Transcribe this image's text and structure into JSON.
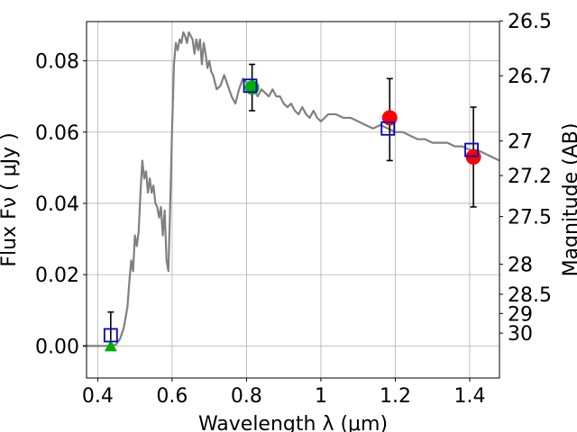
{
  "chart_data": {
    "type": "scatter",
    "xlabel": "Wavelength  λ (μm)",
    "ylabel": "Flux  Fν  ( μJy )",
    "y2label": "Magnitude (AB)",
    "xlim": [
      0.37,
      1.48
    ],
    "ylim": [
      -0.009,
      0.091
    ],
    "grid": true,
    "x_ticks": [
      0.4,
      0.6,
      0.8,
      1.0,
      1.2,
      1.4
    ],
    "x_tick_labels": [
      "0.4",
      "0.6",
      "0.8",
      "1",
      "1.2",
      "1.4"
    ],
    "y_ticks": [
      0.0,
      0.02,
      0.04,
      0.06,
      0.08
    ],
    "y_tick_labels": [
      "0.00",
      "0.02",
      "0.04",
      "0.06",
      "0.08"
    ],
    "y2_ticks": [
      {
        "label": "26.5",
        "flux": 0.0912
      },
      {
        "label": "26.7",
        "flux": 0.0758
      },
      {
        "label": "27",
        "flux": 0.0575
      },
      {
        "label": "27.2",
        "flux": 0.0478
      },
      {
        "label": "27.5",
        "flux": 0.0363
      },
      {
        "label": "28",
        "flux": 0.0229
      },
      {
        "label": "28.5",
        "flux": 0.0145
      },
      {
        "label": "29",
        "flux": 0.0091
      },
      {
        "label": "30",
        "flux": 0.0036
      }
    ],
    "colors": {
      "model": "#808080",
      "square": "#0000cc",
      "circle": "#ff0000",
      "green": "#00b000",
      "errorbar": "#000000"
    },
    "series": [
      {
        "name": "model_sed",
        "style": "line",
        "x": [
          0.36,
          0.44,
          0.45,
          0.46,
          0.47,
          0.48,
          0.485,
          0.49,
          0.495,
          0.5,
          0.505,
          0.51,
          0.515,
          0.52,
          0.525,
          0.53,
          0.535,
          0.54,
          0.545,
          0.55,
          0.555,
          0.56,
          0.565,
          0.57,
          0.575,
          0.58,
          0.585,
          0.59,
          0.595,
          0.6,
          0.605,
          0.61,
          0.615,
          0.62,
          0.625,
          0.63,
          0.635,
          0.64,
          0.645,
          0.65,
          0.655,
          0.66,
          0.665,
          0.67,
          0.675,
          0.68,
          0.685,
          0.69,
          0.695,
          0.7,
          0.705,
          0.71,
          0.715,
          0.72,
          0.73,
          0.74,
          0.75,
          0.76,
          0.77,
          0.78,
          0.79,
          0.8,
          0.81,
          0.82,
          0.83,
          0.84,
          0.85,
          0.86,
          0.87,
          0.88,
          0.89,
          0.9,
          0.91,
          0.92,
          0.93,
          0.94,
          0.95,
          0.96,
          0.97,
          0.98,
          0.99,
          1.0,
          1.02,
          1.04,
          1.06,
          1.08,
          1.1,
          1.12,
          1.14,
          1.16,
          1.18,
          1.2,
          1.22,
          1.24,
          1.26,
          1.28,
          1.3,
          1.32,
          1.34,
          1.36,
          1.38,
          1.4,
          1.42,
          1.44,
          1.46,
          1.48
        ],
        "y": [
          0.0,
          0.0,
          0.0005,
          0.002,
          0.005,
          0.011,
          0.018,
          0.024,
          0.021,
          0.031,
          0.028,
          0.032,
          0.043,
          0.052,
          0.047,
          0.049,
          0.043,
          0.047,
          0.043,
          0.045,
          0.04,
          0.039,
          0.036,
          0.039,
          0.031,
          0.038,
          0.024,
          0.021,
          0.04,
          0.061,
          0.079,
          0.085,
          0.083,
          0.086,
          0.085,
          0.088,
          0.087,
          0.085,
          0.088,
          0.087,
          0.086,
          0.082,
          0.086,
          0.083,
          0.086,
          0.079,
          0.085,
          0.082,
          0.078,
          0.08,
          0.077,
          0.076,
          0.074,
          0.072,
          0.073,
          0.076,
          0.073,
          0.07,
          0.068,
          0.072,
          0.075,
          0.074,
          0.073,
          0.072,
          0.07,
          0.072,
          0.071,
          0.07,
          0.072,
          0.07,
          0.07,
          0.068,
          0.067,
          0.068,
          0.066,
          0.065,
          0.067,
          0.065,
          0.064,
          0.066,
          0.064,
          0.063,
          0.065,
          0.065,
          0.064,
          0.064,
          0.063,
          0.062,
          0.061,
          0.062,
          0.061,
          0.06,
          0.06,
          0.059,
          0.058,
          0.058,
          0.057,
          0.057,
          0.057,
          0.056,
          0.056,
          0.055,
          0.055,
          0.054,
          0.053,
          0.052
        ]
      },
      {
        "name": "squares",
        "style": "open-square",
        "x": [
          0.435,
          0.81,
          1.18,
          1.405
        ],
        "y": [
          0.003,
          0.073,
          0.061,
          0.055
        ]
      },
      {
        "name": "circles",
        "style": "filled-circle",
        "x": [
          1.185,
          1.41
        ],
        "y": [
          0.064,
          0.053
        ],
        "err_low": [
          0.052,
          0.039
        ],
        "err_high": [
          0.075,
          0.067
        ]
      },
      {
        "name": "green",
        "style": "green-marker",
        "x": [
          0.435,
          0.815
        ],
        "y": [
          0.0,
          0.0725
        ],
        "marker": [
          "triangle",
          "circle"
        ],
        "err_low": [
          null,
          0.066
        ],
        "err_high": [
          null,
          0.079
        ]
      },
      {
        "name": "square_errorbars",
        "style": "errorbar",
        "x": [
          0.435
        ],
        "y": [
          0.003
        ],
        "err_low": [
          -0.001
        ],
        "err_high": [
          0.0095
        ]
      }
    ]
  }
}
